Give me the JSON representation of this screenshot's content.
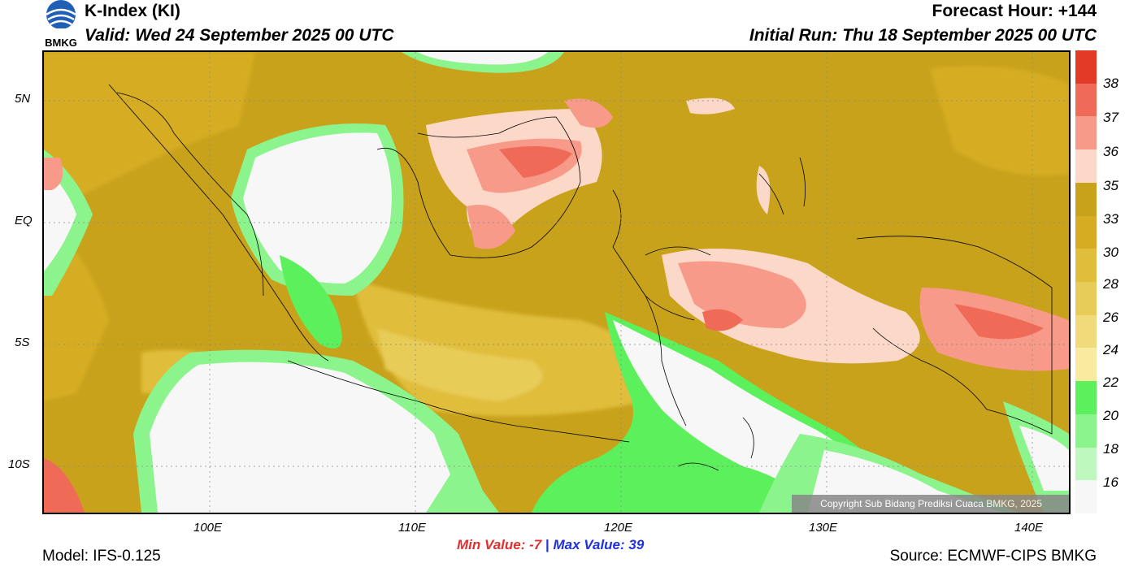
{
  "header": {
    "title": "K-Index (KI)",
    "valid": "Valid: Wed 24 September 2025 00 UTC",
    "forecast_hour": "Forecast Hour: +144",
    "initial_run": "Initial Run: Thu 18 September 2025 00 UTC",
    "logo_text": "BMKG"
  },
  "map": {
    "lat_labels": [
      "5N",
      "EQ",
      "5S",
      "10S"
    ],
    "lon_labels": [
      "100E",
      "110E",
      "120E",
      "130E",
      "140E"
    ],
    "copyright": "Copyright Sub Bidang Prediksi Cuaca BMKG, 2025"
  },
  "colorbar": {
    "labels": [
      "38",
      "37",
      "36",
      "35",
      "33",
      "30",
      "28",
      "26",
      "24",
      "22",
      "20",
      "18",
      "16"
    ],
    "colors": [
      "#e23a26",
      "#ef6b57",
      "#f79a8a",
      "#fcd8c8",
      "#c9a21c",
      "#d6ad22",
      "#e0bd3a",
      "#e8cc59",
      "#f0da7a",
      "#f8ea9e",
      "#5cf05c",
      "#8cf48c",
      "#bff8bf",
      "#f7f7f7"
    ]
  },
  "stats": {
    "min_label": "Min Value:",
    "min_value": "-7",
    "separator": "|",
    "max_label": "Max Value:",
    "max_value": "39",
    "min_color": "#e03030",
    "max_color": "#2030e0"
  },
  "footer": {
    "model": "Model: IFS-0.125",
    "source": "Source: ECMWF-CIPS BMKG"
  }
}
